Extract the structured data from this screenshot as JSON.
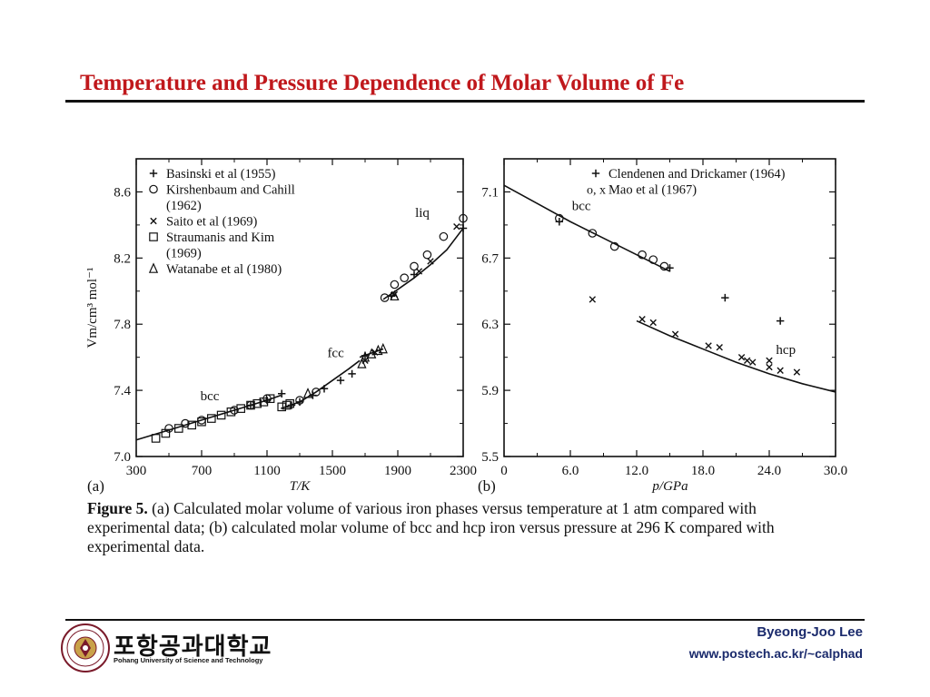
{
  "slide": {
    "title": "Temperature and Pressure Dependence of  Molar Volume of  Fe",
    "author": "Byeong-Joo Lee",
    "url": "www.postech.ac.kr/~calphad",
    "logo_korean": "포항공과대학교",
    "logo_english": "Pohang University of Science and Technology",
    "title_color": "#c0181c",
    "footer_color": "#1a2a6c"
  },
  "caption": {
    "label": "Figure 5.",
    "text": "(a) Calculated molar volume of various iron phases versus temperature at 1 atm compared with experimental data;  (b) calculated molar volume of bcc and hcp iron versus pressure at 296 K compared with experimental data."
  },
  "chart_data": [
    {
      "panel": "(a)",
      "type": "scatter",
      "xlabel": "T/K",
      "ylabel": "Vm/cm³ mol⁻¹",
      "xlim": [
        300,
        2300
      ],
      "ylim": [
        7.0,
        8.8
      ],
      "xticks": [
        "300",
        "700",
        "1100",
        "1500",
        "1900",
        "2300"
      ],
      "yticks": [
        "7.0",
        "7.4",
        "7.8",
        "8.2",
        "8.6"
      ],
      "legend": [
        {
          "marker": "+",
          "label": "Basinski et al (1955)"
        },
        {
          "marker": "o",
          "label": "Kirshenbaum and Cahill (1962)"
        },
        {
          "marker": "x",
          "label": "Saito et al (1969)"
        },
        {
          "marker": "square",
          "label": "Straumanis and Kim (1969)"
        },
        {
          "marker": "triangle",
          "label": "Watanabe et al (1980)"
        }
      ],
      "legend_lines": [
        {
          "marker": "+",
          "text": "Basinski et al (1955)"
        },
        {
          "marker": "o",
          "text": "Kirshenbaum and Cahill"
        },
        {
          "marker": "",
          "text": "(1962)"
        },
        {
          "marker": "x",
          "text": "Saito et al (1969)"
        },
        {
          "marker": "square",
          "text": "Straumanis and Kim"
        },
        {
          "marker": "",
          "text": "(1969)"
        },
        {
          "marker": "triangle",
          "text": "Watanabe et al (1980)"
        }
      ],
      "legend_placement": "top-left",
      "annotations": [
        {
          "text": "liq",
          "x": 2050,
          "y": 8.45
        },
        {
          "text": "fcc",
          "x": 1520,
          "y": 7.6
        },
        {
          "text": "bcc",
          "x": 750,
          "y": 7.34
        }
      ],
      "curves": [
        {
          "name": "bcc",
          "x": [
            300,
            500,
            700,
            900,
            1100,
            1185
          ],
          "y": [
            7.1,
            7.16,
            7.22,
            7.28,
            7.34,
            7.37
          ]
        },
        {
          "name": "fcc",
          "x": [
            1185,
            1300,
            1400,
            1500,
            1600,
            1667
          ],
          "y": [
            7.29,
            7.33,
            7.39,
            7.46,
            7.53,
            7.58
          ]
        },
        {
          "name": "bcc (delta)",
          "x": [
            1667,
            1811
          ],
          "y": [
            7.6,
            7.65
          ]
        },
        {
          "name": "liq",
          "x": [
            1811,
            1900,
            2000,
            2100,
            2200,
            2300
          ],
          "y": [
            7.95,
            8.01,
            8.08,
            8.16,
            8.25,
            8.38
          ]
        }
      ],
      "points": [
        {
          "marker": "square",
          "x": [
            420,
            480,
            560,
            640,
            700,
            760,
            820,
            880,
            940,
            1000,
            1040,
            1080,
            1120,
            1190,
            1220,
            1240
          ],
          "y": [
            7.11,
            7.14,
            7.17,
            7.19,
            7.21,
            7.23,
            7.25,
            7.27,
            7.29,
            7.31,
            7.32,
            7.33,
            7.35,
            7.3,
            7.31,
            7.32
          ]
        },
        {
          "marker": "o",
          "x": [
            500,
            600,
            700,
            900,
            1000,
            1100,
            1300,
            1400,
            1820,
            1880,
            1940,
            2000,
            2080,
            2180,
            2300
          ],
          "y": [
            7.17,
            7.2,
            7.22,
            7.28,
            7.31,
            7.35,
            7.34,
            7.39,
            7.96,
            8.04,
            8.08,
            8.15,
            8.22,
            8.33,
            8.44
          ]
        },
        {
          "marker": "+",
          "x": [
            1000,
            1100,
            1190,
            1250,
            1300,
            1380,
            1450,
            1550,
            1620,
            1700,
            1860,
            2000,
            2300
          ],
          "y": [
            7.31,
            7.34,
            7.38,
            7.31,
            7.33,
            7.37,
            7.41,
            7.46,
            7.5,
            7.61,
            7.97,
            8.1,
            8.38
          ]
        },
        {
          "marker": "x",
          "x": [
            1700,
            1760,
            1880,
            2030,
            2100,
            2260
          ],
          "y": [
            7.58,
            7.63,
            7.98,
            8.12,
            8.18,
            8.39
          ]
        },
        {
          "marker": "triangle",
          "x": [
            1350,
            1680,
            1700,
            1740,
            1780,
            1810,
            1880
          ],
          "y": [
            7.38,
            7.56,
            7.6,
            7.62,
            7.64,
            7.65,
            7.97
          ]
        }
      ]
    },
    {
      "panel": "(b)",
      "type": "scatter",
      "xlabel": "p/GPa",
      "ylabel": "",
      "xlim": [
        0,
        30
      ],
      "ylim": [
        5.5,
        7.3
      ],
      "xticks": [
        "0",
        "6.0",
        "12.0",
        "18.0",
        "24.0",
        "30.0"
      ],
      "yticks": [
        "5.5",
        "5.9",
        "6.3",
        "6.7",
        "7.1"
      ],
      "legend": [
        {
          "marker": "+",
          "label": "Clendenen and Drickamer (1964)"
        },
        {
          "marker": "o, x",
          "label": "Mao et al (1967)"
        }
      ],
      "legend_lines": [
        {
          "marker": "+",
          "text": "Clendenen and Drickamer (1964)"
        },
        {
          "marker": "o, x",
          "text": "Mao et al (1967)"
        }
      ],
      "legend_placement": "top-right",
      "annotations": [
        {
          "text": "bcc",
          "x": 7.0,
          "y": 6.99
        },
        {
          "text": "hcp",
          "x": 25.5,
          "y": 6.12
        }
      ],
      "curves": [
        {
          "name": "bcc",
          "x": [
            0,
            3,
            6,
            9,
            12,
            15
          ],
          "y": [
            7.14,
            7.03,
            6.92,
            6.82,
            6.72,
            6.62
          ]
        },
        {
          "name": "hcp",
          "x": [
            12,
            15,
            18,
            21,
            24,
            27,
            30
          ],
          "y": [
            6.32,
            6.23,
            6.15,
            6.07,
            6.0,
            5.94,
            5.89
          ]
        }
      ],
      "points": [
        {
          "marker": "o",
          "x": [
            5.0,
            8.0,
            10.0,
            12.5,
            13.5,
            14.5
          ],
          "y": [
            6.94,
            6.85,
            6.77,
            6.72,
            6.69,
            6.65
          ]
        },
        {
          "marker": "+",
          "x": [
            5.0,
            15.0,
            20.0,
            25.0
          ],
          "y": [
            6.92,
            6.64,
            6.46,
            6.32
          ]
        },
        {
          "marker": "x",
          "x": [
            8.0,
            12.5,
            13.5,
            15.5,
            18.5,
            19.5,
            21.5,
            22.0,
            22.5,
            24.0,
            24.0,
            25.0,
            26.5
          ],
          "y": [
            6.45,
            6.33,
            6.31,
            6.24,
            6.17,
            6.16,
            6.1,
            6.08,
            6.07,
            6.04,
            6.08,
            6.02,
            6.01
          ]
        }
      ]
    }
  ]
}
